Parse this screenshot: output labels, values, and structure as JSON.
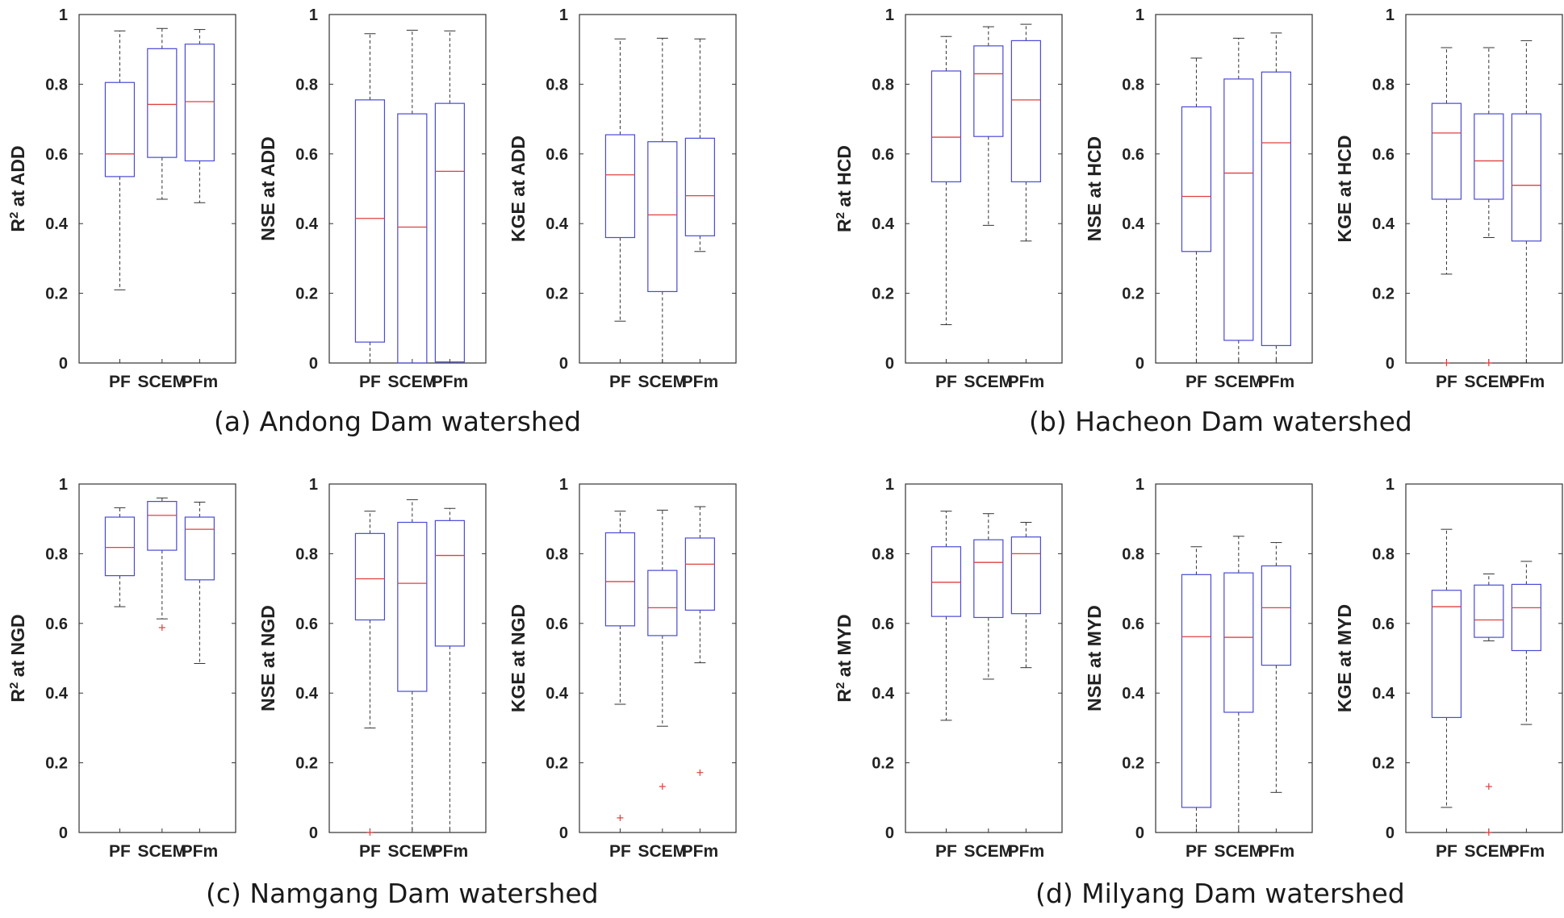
{
  "chart_data": [
    {
      "type": "box",
      "group": "a",
      "ylabel": "R2 at ADD",
      "ylabel_main": "R",
      "ylabel_sup": "2",
      "ylabel_rest": " at ADD",
      "categories": [
        "PF",
        "SCEM",
        "PFm"
      ],
      "ylim": [
        0,
        1
      ],
      "yticks": [
        "0",
        "0.2",
        "0.4",
        "0.6",
        "0.8",
        "1"
      ],
      "boxes": [
        {
          "whisker_low": 0.21,
          "q1": 0.535,
          "median": 0.6,
          "q3": 0.805,
          "whisker_high": 0.953,
          "outliers": []
        },
        {
          "whisker_low": 0.47,
          "q1": 0.59,
          "median": 0.742,
          "q3": 0.902,
          "whisker_high": 0.96,
          "outliers": []
        },
        {
          "whisker_low": 0.46,
          "q1": 0.58,
          "median": 0.75,
          "q3": 0.915,
          "whisker_high": 0.957,
          "outliers": []
        }
      ]
    },
    {
      "type": "box",
      "group": "a",
      "ylabel": "NSE at ADD",
      "ylabel_main": "NSE at ADD",
      "ylabel_sup": "",
      "ylabel_rest": "",
      "categories": [
        "PF",
        "SCEM",
        "PFm"
      ],
      "ylim": [
        0,
        1
      ],
      "yticks": [
        "0",
        "0.2",
        "0.4",
        "0.6",
        "0.8",
        "1"
      ],
      "boxes": [
        {
          "whisker_low": 0.0,
          "q1": 0.06,
          "median": 0.415,
          "q3": 0.755,
          "whisker_high": 0.945,
          "outliers": []
        },
        {
          "whisker_low": 0.0,
          "q1": 0.0,
          "median": 0.39,
          "q3": 0.715,
          "whisker_high": 0.955,
          "outliers": []
        },
        {
          "whisker_low": 0.0,
          "q1": 0.003,
          "median": 0.55,
          "q3": 0.745,
          "whisker_high": 0.953,
          "outliers": []
        }
      ]
    },
    {
      "type": "box",
      "group": "a",
      "ylabel": "KGE at ADD",
      "ylabel_main": "KGE at ADD",
      "ylabel_sup": "",
      "ylabel_rest": "",
      "categories": [
        "PF",
        "SCEM",
        "PFm"
      ],
      "ylim": [
        0,
        1
      ],
      "yticks": [
        "0",
        "0.2",
        "0.4",
        "0.6",
        "0.8",
        "1"
      ],
      "boxes": [
        {
          "whisker_low": 0.12,
          "q1": 0.36,
          "median": 0.54,
          "q3": 0.655,
          "whisker_high": 0.93,
          "outliers": []
        },
        {
          "whisker_low": 0.0,
          "q1": 0.205,
          "median": 0.425,
          "q3": 0.635,
          "whisker_high": 0.932,
          "outliers": []
        },
        {
          "whisker_low": 0.32,
          "q1": 0.365,
          "median": 0.48,
          "q3": 0.645,
          "whisker_high": 0.93,
          "outliers": []
        }
      ]
    },
    {
      "type": "box",
      "group": "b",
      "ylabel": "R2 at HCD",
      "ylabel_main": "R",
      "ylabel_sup": "2",
      "ylabel_rest": " at HCD",
      "categories": [
        "PF",
        "SCEM",
        "PFm"
      ],
      "ylim": [
        0,
        1
      ],
      "yticks": [
        "0",
        "0.2",
        "0.4",
        "0.6",
        "0.8",
        "1"
      ],
      "boxes": [
        {
          "whisker_low": 0.11,
          "q1": 0.52,
          "median": 0.648,
          "q3": 0.838,
          "whisker_high": 0.937,
          "outliers": []
        },
        {
          "whisker_low": 0.395,
          "q1": 0.65,
          "median": 0.83,
          "q3": 0.91,
          "whisker_high": 0.965,
          "outliers": []
        },
        {
          "whisker_low": 0.35,
          "q1": 0.52,
          "median": 0.755,
          "q3": 0.925,
          "whisker_high": 0.972,
          "outliers": []
        }
      ]
    },
    {
      "type": "box",
      "group": "b",
      "ylabel": "NSE at HCD",
      "ylabel_main": "NSE at HCD",
      "ylabel_sup": "",
      "ylabel_rest": "",
      "categories": [
        "PF",
        "SCEM",
        "PFm"
      ],
      "ylim": [
        0,
        1
      ],
      "yticks": [
        "0",
        "0.2",
        "0.4",
        "0.6",
        "0.8",
        "1"
      ],
      "boxes": [
        {
          "whisker_low": 0.0,
          "q1": 0.32,
          "median": 0.478,
          "q3": 0.735,
          "whisker_high": 0.875,
          "outliers": []
        },
        {
          "whisker_low": 0.0,
          "q1": 0.065,
          "median": 0.545,
          "q3": 0.815,
          "whisker_high": 0.932,
          "outliers": []
        },
        {
          "whisker_low": 0.0,
          "q1": 0.05,
          "median": 0.632,
          "q3": 0.835,
          "whisker_high": 0.947,
          "outliers": []
        }
      ]
    },
    {
      "type": "box",
      "group": "b",
      "ylabel": "KGE at HCD",
      "ylabel_main": "KGE at HCD",
      "ylabel_sup": "",
      "ylabel_rest": "",
      "categories": [
        "PF",
        "SCEM",
        "PFm"
      ],
      "ylim": [
        0,
        1
      ],
      "yticks": [
        "0",
        "0.2",
        "0.4",
        "0.6",
        "0.8",
        "1"
      ],
      "boxes": [
        {
          "whisker_low": 0.255,
          "q1": 0.47,
          "median": 0.66,
          "q3": 0.745,
          "whisker_high": 0.905,
          "outliers": [
            0.0
          ]
        },
        {
          "whisker_low": 0.36,
          "q1": 0.47,
          "median": 0.58,
          "q3": 0.715,
          "whisker_high": 0.905,
          "outliers": [
            0.0
          ]
        },
        {
          "whisker_low": 0.0,
          "q1": 0.35,
          "median": 0.51,
          "q3": 0.715,
          "whisker_high": 0.925,
          "outliers": []
        }
      ]
    },
    {
      "type": "box",
      "group": "c",
      "ylabel": "R2 at NGD",
      "ylabel_main": "R",
      "ylabel_sup": "2",
      "ylabel_rest": " at NGD",
      "categories": [
        "PF",
        "SCEM",
        "PFm"
      ],
      "ylim": [
        0,
        1
      ],
      "yticks": [
        "0",
        "0.2",
        "0.4",
        "0.6",
        "0.8",
        "1"
      ],
      "boxes": [
        {
          "whisker_low": 0.648,
          "q1": 0.737,
          "median": 0.818,
          "q3": 0.905,
          "whisker_high": 0.932,
          "outliers": []
        },
        {
          "whisker_low": 0.613,
          "q1": 0.81,
          "median": 0.91,
          "q3": 0.95,
          "whisker_high": 0.96,
          "outliers": [
            0.588
          ]
        },
        {
          "whisker_low": 0.485,
          "q1": 0.725,
          "median": 0.87,
          "q3": 0.905,
          "whisker_high": 0.948,
          "outliers": []
        }
      ]
    },
    {
      "type": "box",
      "group": "c",
      "ylabel": "NSE at NGD",
      "ylabel_main": "NSE at NGD",
      "ylabel_sup": "",
      "ylabel_rest": "",
      "categories": [
        "PF",
        "SCEM",
        "PFm"
      ],
      "ylim": [
        0,
        1
      ],
      "yticks": [
        "0",
        "0.2",
        "0.4",
        "0.6",
        "0.8",
        "1"
      ],
      "boxes": [
        {
          "whisker_low": 0.3,
          "q1": 0.61,
          "median": 0.728,
          "q3": 0.858,
          "whisker_high": 0.922,
          "outliers": [
            0.0
          ]
        },
        {
          "whisker_low": 0.0,
          "q1": 0.405,
          "median": 0.715,
          "q3": 0.89,
          "whisker_high": 0.955,
          "outliers": []
        },
        {
          "whisker_low": 0.0,
          "q1": 0.535,
          "median": 0.795,
          "q3": 0.895,
          "whisker_high": 0.93,
          "outliers": []
        }
      ]
    },
    {
      "type": "box",
      "group": "c",
      "ylabel": "KGE at NGD",
      "ylabel_main": "KGE at NGD",
      "ylabel_sup": "",
      "ylabel_rest": "",
      "categories": [
        "PF",
        "SCEM",
        "PFm"
      ],
      "ylim": [
        0,
        1
      ],
      "yticks": [
        "0",
        "0.2",
        "0.4",
        "0.6",
        "0.8",
        "1"
      ],
      "boxes": [
        {
          "whisker_low": 0.368,
          "q1": 0.593,
          "median": 0.72,
          "q3": 0.86,
          "whisker_high": 0.922,
          "outliers": [
            0.042
          ]
        },
        {
          "whisker_low": 0.305,
          "q1": 0.565,
          "median": 0.645,
          "q3": 0.752,
          "whisker_high": 0.925,
          "outliers": [
            0.132
          ]
        },
        {
          "whisker_low": 0.487,
          "q1": 0.638,
          "median": 0.77,
          "q3": 0.845,
          "whisker_high": 0.935,
          "outliers": [
            0.172
          ]
        }
      ]
    },
    {
      "type": "box",
      "group": "d",
      "ylabel": "R2 at MYD",
      "ylabel_main": "R",
      "ylabel_sup": "2",
      "ylabel_rest": " at MYD",
      "categories": [
        "PF",
        "SCEM",
        "PFm"
      ],
      "ylim": [
        0,
        1
      ],
      "yticks": [
        "0",
        "0.2",
        "0.4",
        "0.6",
        "0.8",
        "1"
      ],
      "boxes": [
        {
          "whisker_low": 0.322,
          "q1": 0.62,
          "median": 0.718,
          "q3": 0.82,
          "whisker_high": 0.922,
          "outliers": []
        },
        {
          "whisker_low": 0.44,
          "q1": 0.617,
          "median": 0.775,
          "q3": 0.84,
          "whisker_high": 0.915,
          "outliers": []
        },
        {
          "whisker_low": 0.473,
          "q1": 0.628,
          "median": 0.8,
          "q3": 0.848,
          "whisker_high": 0.89,
          "outliers": []
        }
      ]
    },
    {
      "type": "box",
      "group": "d",
      "ylabel": "NSE at MYD",
      "ylabel_main": "NSE at MYD",
      "ylabel_sup": "",
      "ylabel_rest": "",
      "categories": [
        "PF",
        "SCEM",
        "PFm"
      ],
      "ylim": [
        0,
        1
      ],
      "yticks": [
        "0",
        "0.2",
        "0.4",
        "0.6",
        "0.8",
        "1"
      ],
      "boxes": [
        {
          "whisker_low": 0.0,
          "q1": 0.072,
          "median": 0.562,
          "q3": 0.74,
          "whisker_high": 0.82,
          "outliers": []
        },
        {
          "whisker_low": 0.0,
          "q1": 0.345,
          "median": 0.56,
          "q3": 0.745,
          "whisker_high": 0.85,
          "outliers": []
        },
        {
          "whisker_low": 0.115,
          "q1": 0.48,
          "median": 0.645,
          "q3": 0.765,
          "whisker_high": 0.832,
          "outliers": []
        }
      ]
    },
    {
      "type": "box",
      "group": "d",
      "ylabel": "KGE at MYD",
      "ylabel_main": "KGE at MYD",
      "ylabel_sup": "",
      "ylabel_rest": "",
      "categories": [
        "PF",
        "SCEM",
        "PFm"
      ],
      "ylim": [
        0,
        1
      ],
      "yticks": [
        "0",
        "0.2",
        "0.4",
        "0.6",
        "0.8",
        "1"
      ],
      "boxes": [
        {
          "whisker_low": 0.072,
          "q1": 0.33,
          "median": 0.648,
          "q3": 0.695,
          "whisker_high": 0.87,
          "outliers": []
        },
        {
          "whisker_low": 0.55,
          "q1": 0.56,
          "median": 0.61,
          "q3": 0.71,
          "whisker_high": 0.742,
          "outliers": [
            0.132,
            0.0
          ]
        },
        {
          "whisker_low": 0.31,
          "q1": 0.522,
          "median": 0.645,
          "q3": 0.712,
          "whisker_high": 0.778,
          "outliers": []
        }
      ]
    }
  ],
  "captions": {
    "a": "(a) Andong Dam watershed",
    "b": "(b) Hacheon Dam watershed",
    "c": "(c) Namgang Dam watershed",
    "d": "(d) Milyang Dam watershed"
  },
  "colors": {
    "box": "#4a4ad8",
    "median": "#e04040",
    "whisker": "#333333",
    "outlier": "#e04040",
    "axis": "#333333"
  }
}
